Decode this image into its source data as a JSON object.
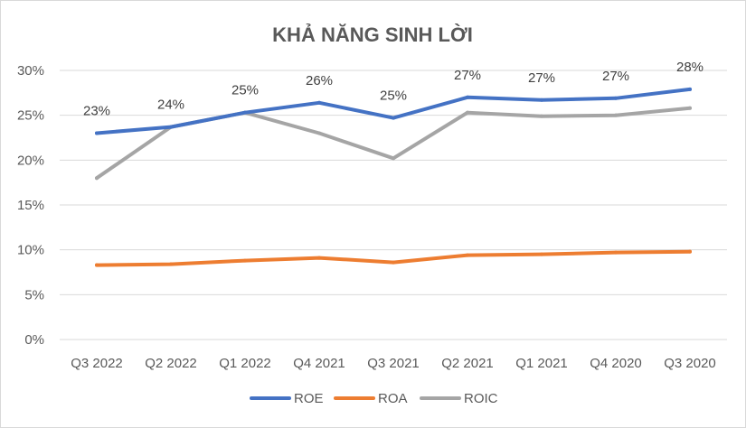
{
  "chart_data": {
    "type": "line",
    "title": "KHẢ NĂNG SINH LỜI",
    "categories": [
      "Q3 2022",
      "Q2 2022",
      "Q1 2022",
      "Q4 2021",
      "Q3 2021",
      "Q2 2021",
      "Q1 2021",
      "Q4 2020",
      "Q3 2020"
    ],
    "y_ticks": [
      "0%",
      "5%",
      "10%",
      "15%",
      "20%",
      "25%",
      "30%"
    ],
    "ylim": [
      0,
      30
    ],
    "grid": true,
    "legend_position": "bottom",
    "series": [
      {
        "name": "ROE",
        "color": "#4472C4",
        "values": [
          23.0,
          23.7,
          25.3,
          26.4,
          24.7,
          27.0,
          26.7,
          26.9,
          27.9
        ],
        "labels": [
          "23%",
          "24%",
          "25%",
          "26%",
          "25%",
          "27%",
          "27%",
          "27%",
          "28%"
        ]
      },
      {
        "name": "ROA",
        "color": "#ED7D31",
        "values": [
          8.3,
          8.4,
          8.8,
          9.1,
          8.6,
          9.4,
          9.5,
          9.7,
          9.8
        ]
      },
      {
        "name": "ROIC",
        "color": "#A5A5A5",
        "values": [
          18.0,
          23.7,
          25.3,
          23.0,
          20.2,
          25.3,
          24.9,
          25.0,
          25.8
        ]
      }
    ]
  }
}
